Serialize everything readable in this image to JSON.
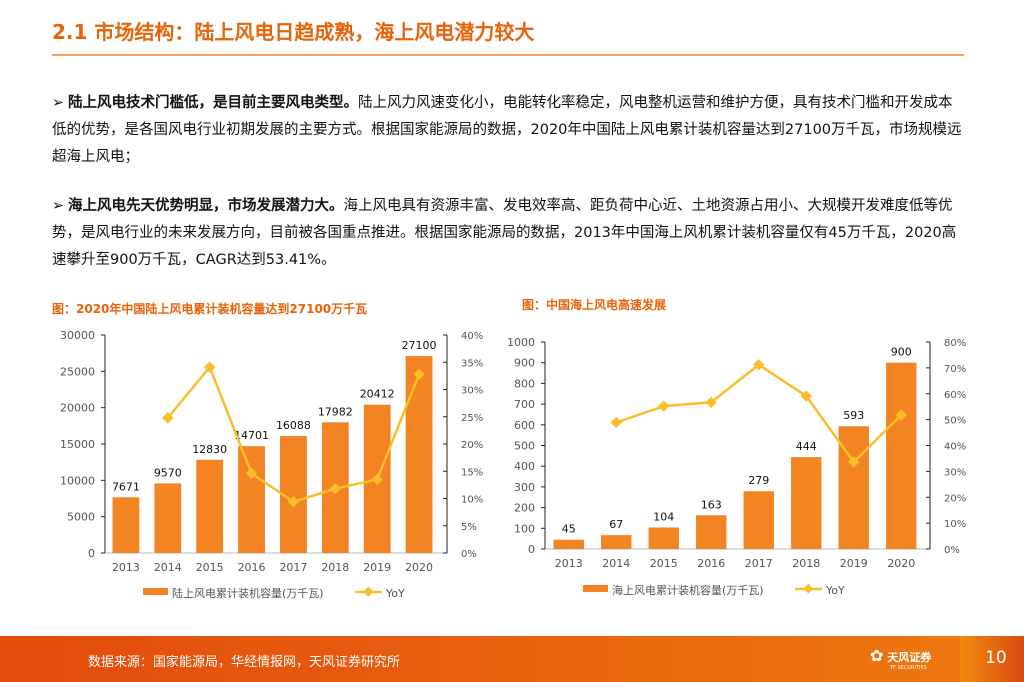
{
  "title": "2.1 市场结构：陆上风电日趋成熟，海上风电潜力较大",
  "bullets": [
    {
      "bold": "陆上风电技术门槛低，是目前主要风电类型。",
      "text": "陆上风力风速变化小，电能转化率稳定，风电整机运营和维护方便，具有技术门槛和开发成本低的优势，是各国风电行业初期发展的主要方式。根据国家能源局的数据，2020年中国陆上风电累计装机容量达到27100万千瓦，市场规模远超海上风电；"
    },
    {
      "bold": "海上风电先天优势明显，市场发展潜力大。",
      "text": "海上风电具有资源丰富、发电效率高、距负荷中心近、土地资源占用小、大规模开发难度低等优势，是风电行业的未来发展方向，目前被各国重点推进。根据国家能源局的数据，2013年中国海上风机累计装机容量仅有45万千瓦，2020高速攀升至900万千瓦，CAGR达到53.41%。"
    }
  ],
  "chart_data": [
    {
      "type": "bar+line",
      "title": "图：2020年中国陆上风电累计装机容量达到27100万千瓦",
      "categories": [
        "2013",
        "2014",
        "2015",
        "2016",
        "2017",
        "2018",
        "2019",
        "2020"
      ],
      "series": [
        {
          "name": "陆上风电累计装机容量(万千瓦)",
          "type": "bar",
          "axis": "left",
          "values": [
            7671,
            9570,
            12830,
            14701,
            16088,
            17982,
            20412,
            27100
          ]
        },
        {
          "name": "YoY",
          "type": "line",
          "axis": "right",
          "values": [
            null,
            24.8,
            34.1,
            14.6,
            9.4,
            11.8,
            13.5,
            32.8
          ]
        }
      ],
      "ylim": [
        0,
        30000
      ],
      "yticks": [
        "0",
        "5000",
        "10000",
        "15000",
        "20000",
        "25000",
        "30000"
      ],
      "y2lim": [
        0,
        40
      ],
      "y2ticks": [
        "0%",
        "5%",
        "10%",
        "15%",
        "20%",
        "25%",
        "30%",
        "35%",
        "40%"
      ],
      "legend": "bottom"
    },
    {
      "type": "bar+line",
      "title": "图：中国海上风电高速发展",
      "categories": [
        "2013",
        "2014",
        "2015",
        "2016",
        "2017",
        "2018",
        "2019",
        "2020"
      ],
      "series": [
        {
          "name": "海上风电累计装机容量(万千瓦)",
          "type": "bar",
          "axis": "left",
          "values": [
            45,
            67,
            104,
            163,
            279,
            444,
            593,
            900
          ]
        },
        {
          "name": "YoY",
          "type": "line",
          "axis": "right",
          "values": [
            null,
            48.9,
            55.2,
            56.7,
            71.2,
            59.1,
            33.6,
            51.8
          ]
        }
      ],
      "ylim": [
        0,
        1000
      ],
      "yticks": [
        "0",
        "100",
        "200",
        "300",
        "400",
        "500",
        "600",
        "700",
        "800",
        "900",
        "1000"
      ],
      "y2lim": [
        0,
        80
      ],
      "y2ticks": [
        "0%",
        "10%",
        "20%",
        "30%",
        "40%",
        "50%",
        "60%",
        "70%",
        "80%"
      ],
      "legend": "bottom"
    }
  ],
  "colors": {
    "accent": "#e8630a",
    "bar": "#f28424",
    "line": "#fbbd28"
  },
  "footer": {
    "source": "数据来源：国家能源局，华经情报网，天风证券研究所",
    "logo": "天风证券",
    "logo_sub": "TF SECURITIES",
    "page": "10"
  }
}
